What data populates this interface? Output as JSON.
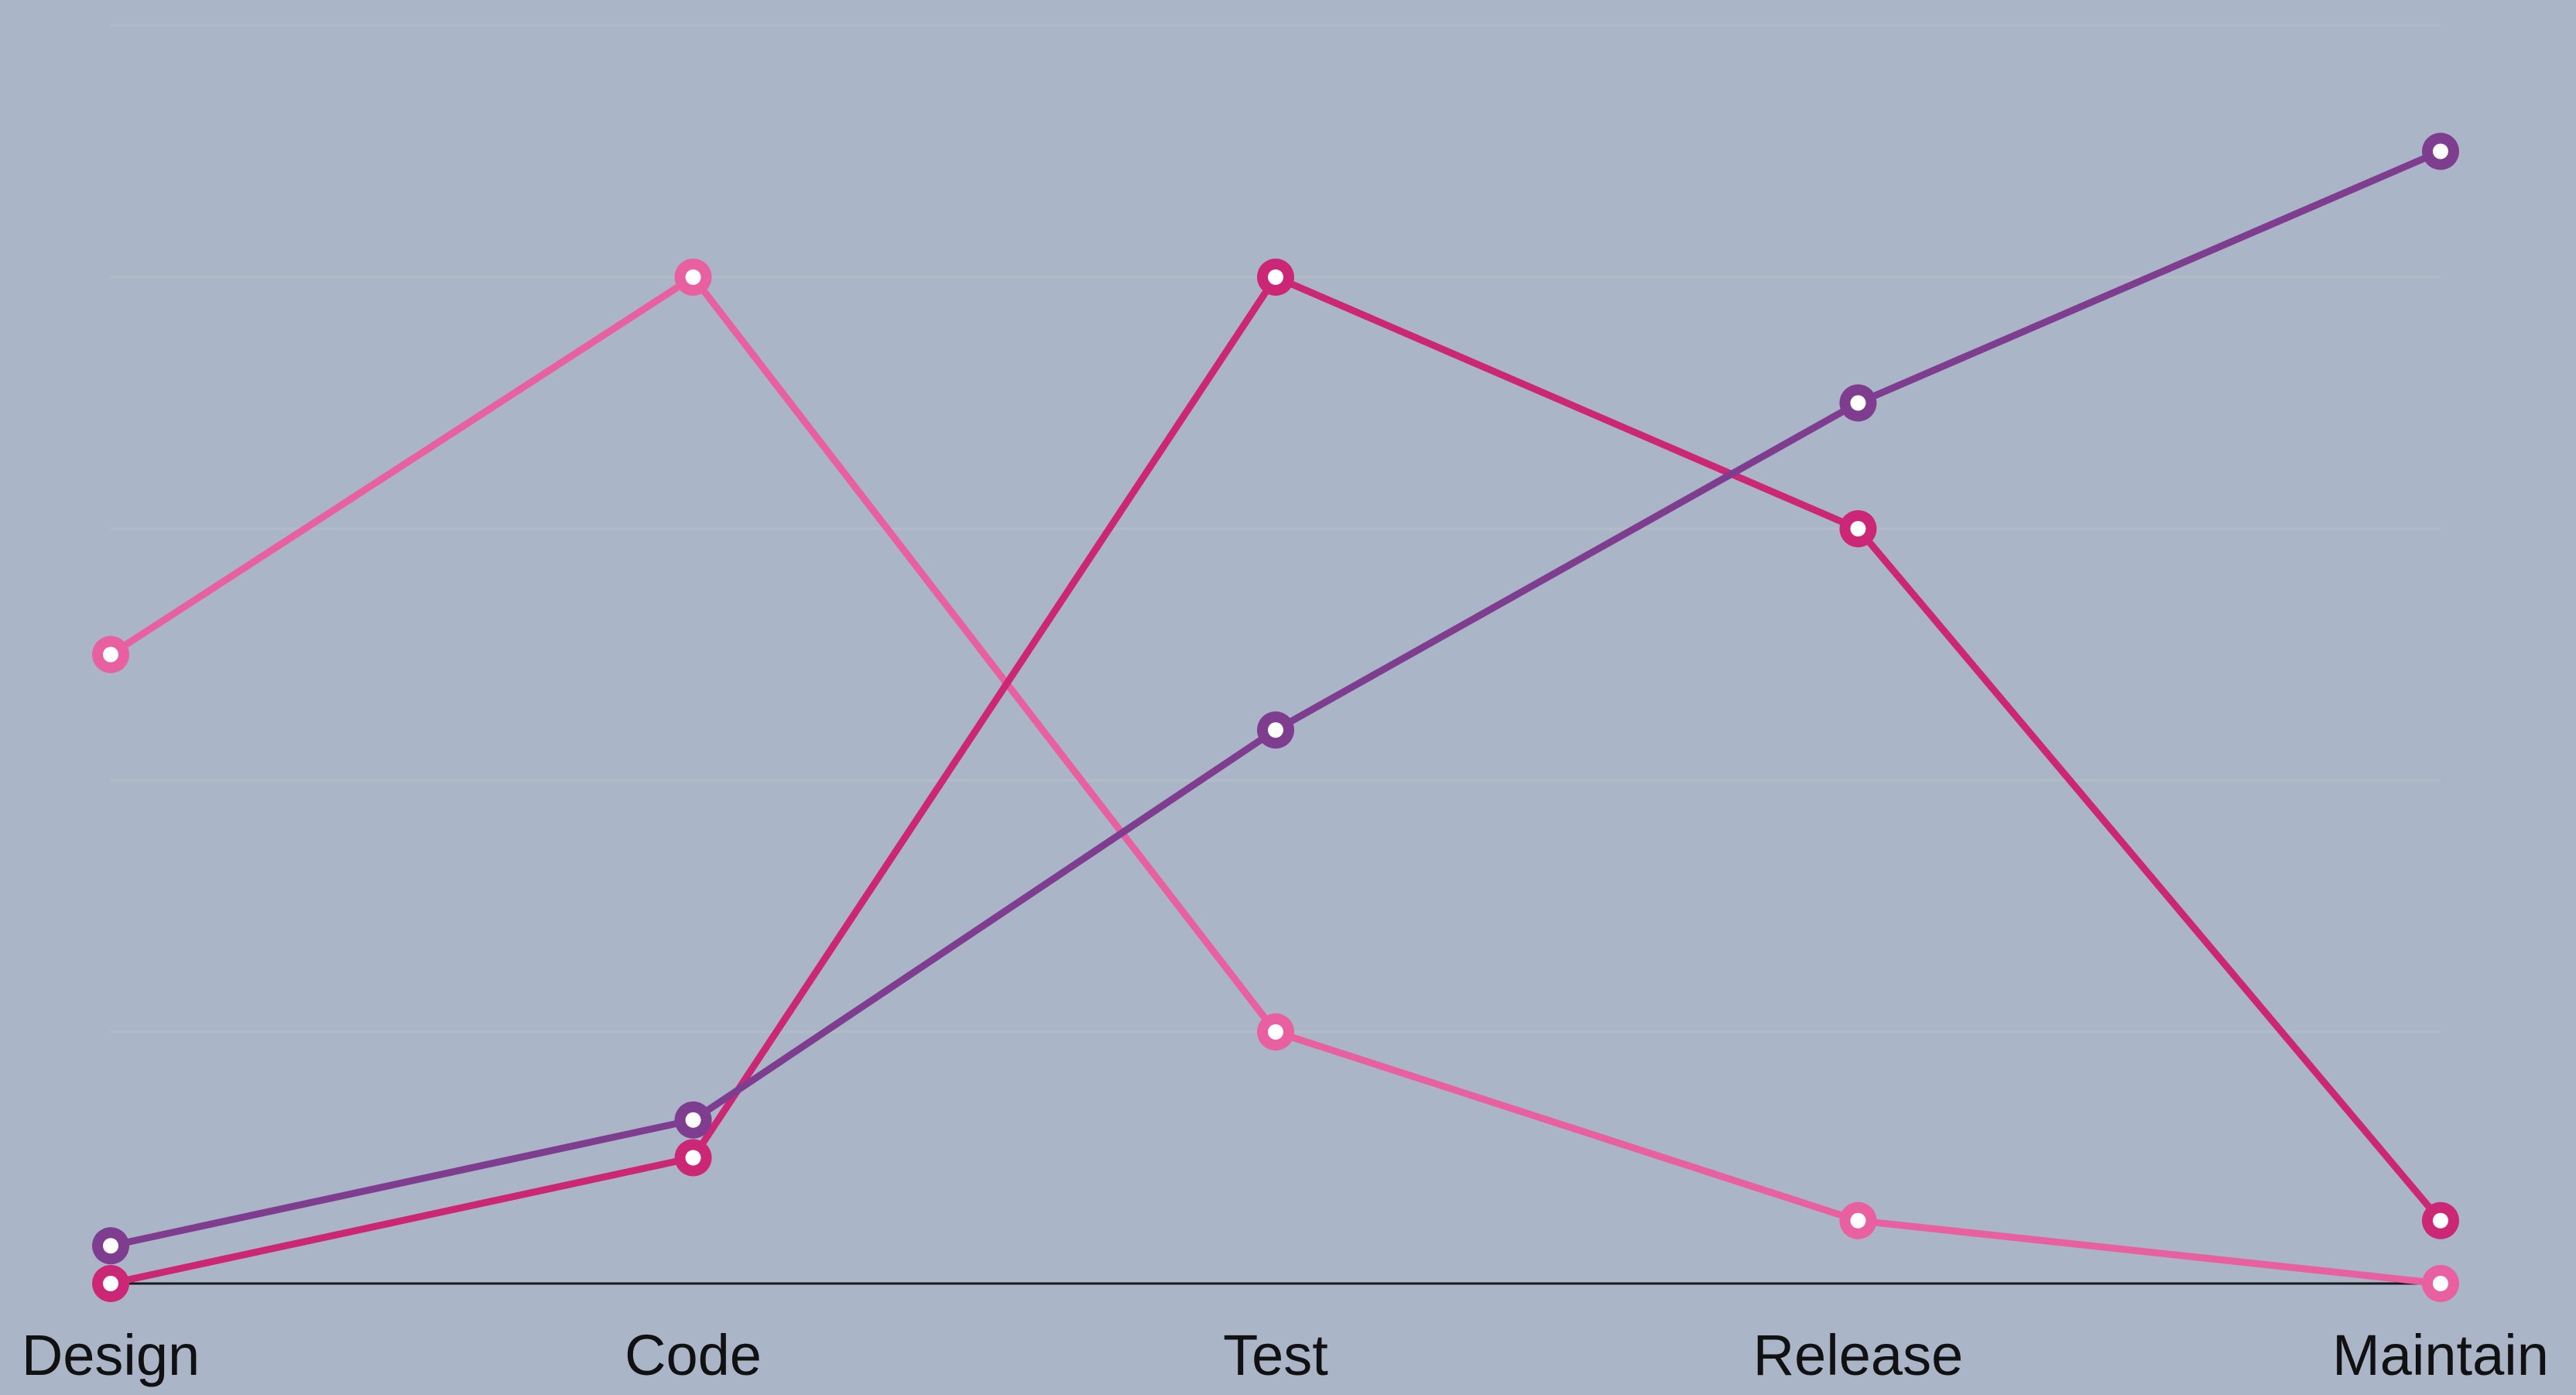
{
  "chart_data": {
    "type": "line",
    "title": "",
    "xlabel": "",
    "ylabel": "",
    "categories": [
      "Design",
      "Code",
      "Test",
      "Release",
      "Maintain"
    ],
    "ylim": [
      0,
      100
    ],
    "grid": true,
    "legend": "none",
    "series": [
      {
        "color": "#e8609f",
        "values": [
          50,
          80,
          20,
          5,
          0
        ]
      },
      {
        "color": "#cc2776",
        "values": [
          0,
          10,
          80,
          60,
          5
        ]
      },
      {
        "color": "#7e3d8e",
        "values": [
          3,
          13,
          44,
          70,
          90
        ]
      }
    ]
  }
}
